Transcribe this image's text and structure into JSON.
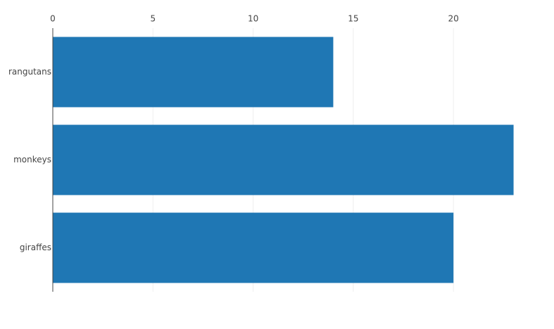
{
  "chart_data": {
    "type": "hbar",
    "categories": [
      "rangutans",
      "monkeys",
      "giraffes"
    ],
    "values": [
      14,
      23,
      20
    ],
    "color": "#1f77b4",
    "xlim": [
      0,
      24.21
    ],
    "xticks": [
      0,
      5,
      10,
      15,
      20
    ],
    "grid": true
  }
}
